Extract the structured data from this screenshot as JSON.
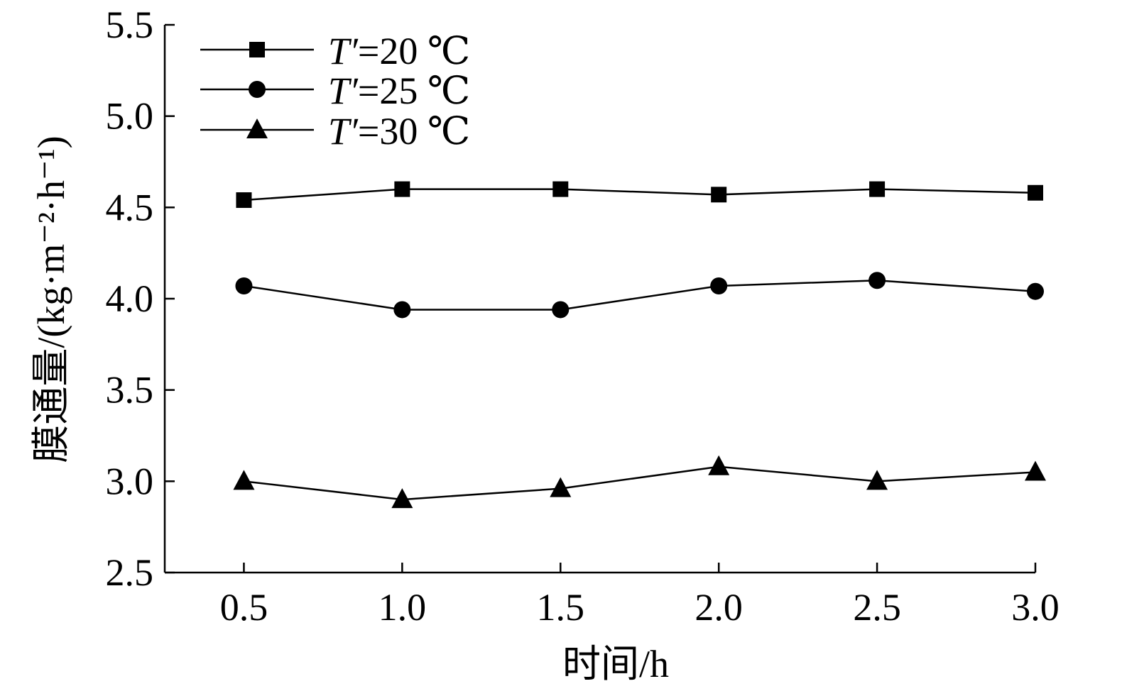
{
  "chart_data": {
    "type": "line",
    "title": "",
    "xlabel": "时间/h",
    "ylabel": "膜通量/(kg·m⁻²·h⁻¹)",
    "x": [
      0.5,
      1.0,
      1.5,
      2.0,
      2.5,
      3.0
    ],
    "x_tick_labels": [
      "0.5",
      "1.0",
      "1.5",
      "2.0",
      "2.5",
      "3.0"
    ],
    "xlim": [
      0.25,
      3.0
    ],
    "ylim": [
      2.5,
      5.5
    ],
    "y_ticks": [
      2.5,
      3.0,
      3.5,
      4.0,
      4.5,
      5.0,
      5.5
    ],
    "y_tick_labels": [
      "2.5",
      "3.0",
      "3.5",
      "4.0",
      "4.5",
      "5.0",
      "5.5"
    ],
    "grid": false,
    "legend_position": "top-left",
    "series": [
      {
        "name": "T′=20 ℃",
        "legend_var": "T′",
        "legend_rest": "=20 ℃",
        "marker": "square",
        "values": [
          4.54,
          4.6,
          4.6,
          4.57,
          4.6,
          4.58
        ]
      },
      {
        "name": "T′=25 ℃",
        "legend_var": "T′",
        "legend_rest": "=25 ℃",
        "marker": "circle",
        "values": [
          4.07,
          3.94,
          3.94,
          4.07,
          4.1,
          4.04
        ]
      },
      {
        "name": "T′=30 ℃",
        "legend_var": "T′",
        "legend_rest": "=30 ℃",
        "marker": "triangle",
        "values": [
          3.0,
          2.9,
          2.96,
          3.08,
          3.0,
          3.05
        ]
      }
    ],
    "colors": {
      "line": "#000000",
      "marker": "#000000"
    }
  }
}
